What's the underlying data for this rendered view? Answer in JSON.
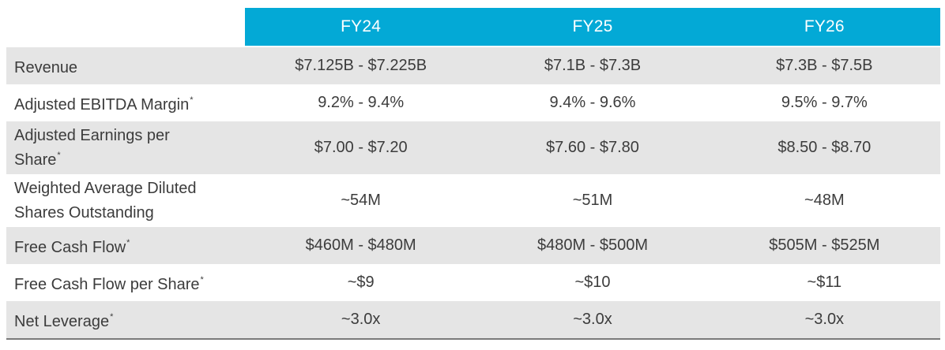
{
  "columns": [
    "FY24",
    "FY25",
    "FY26"
  ],
  "rows": [
    {
      "label": "Revenue",
      "footnote": "",
      "values": [
        "$7.125B - $7.225B",
        "$7.1B - $7.3B",
        "$7.3B - $7.5B"
      ]
    },
    {
      "label": "Adjusted EBITDA Margin",
      "footnote": "*",
      "values": [
        "9.2% - 9.4%",
        "9.4% - 9.6%",
        "9.5% - 9.7%"
      ]
    },
    {
      "label": "Adjusted Earnings per Share",
      "footnote": "*",
      "values": [
        "$7.00 - $7.20",
        "$7.60 - $7.80",
        "$8.50 - $8.70"
      ]
    },
    {
      "label": "Weighted Average Diluted Shares Outstanding",
      "footnote": "",
      "values": [
        "~54M",
        "~51M",
        "~48M"
      ]
    },
    {
      "label": "Free Cash Flow",
      "footnote": "*",
      "values": [
        "$460M - $480M",
        "$480M - $500M",
        "$505M - $525M"
      ]
    },
    {
      "label": "Free Cash Flow per Share",
      "footnote": "*",
      "values": [
        "~$9",
        "~$10",
        "~$11"
      ]
    },
    {
      "label": "Net Leverage",
      "footnote": "*",
      "values": [
        "~3.0x",
        "~3.0x",
        "~3.0x"
      ]
    }
  ],
  "colors": {
    "header_band": "#03a9d6",
    "shaded_row": "#e5e5e5",
    "text": "#3c3c3c",
    "bottom_rule": "#7a7a7a"
  }
}
